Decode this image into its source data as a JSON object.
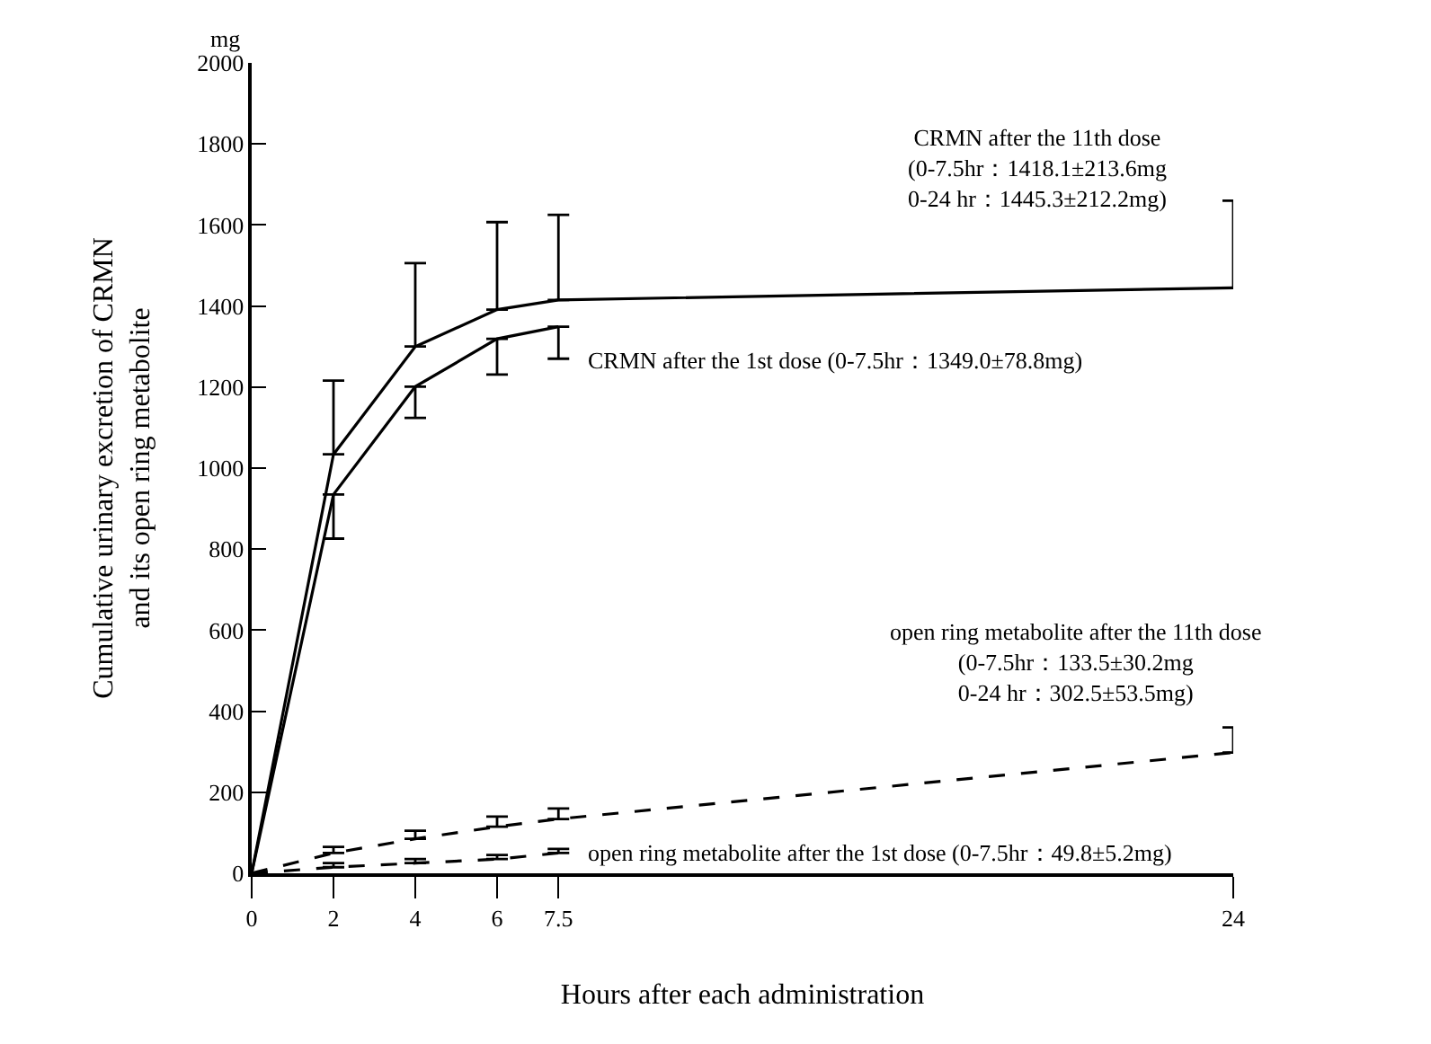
{
  "chart_data": {
    "type": "line",
    "xlabel": "Hours after each administration",
    "ylabel": "Cumulative urinary excretion of CRMN\nand its open ring metabolite",
    "x": [
      0,
      2,
      4,
      6,
      7.5,
      24
    ],
    "series": [
      {
        "color": "#000000",
        "line_style": "solid",
        "values": [
          0,
          1034,
          1300,
          1391,
          1415,
          1445
        ],
        "errors": [
          null,
          [
            1034,
            1216
          ],
          [
            1300,
            1506
          ],
          [
            1391,
            1607
          ],
          [
            1415,
            1625
          ],
          [
            1445,
            1660
          ]
        ]
      },
      {
        "color": "#000000",
        "line_style": "solid",
        "values": [
          0,
          935,
          1201,
          1319,
          1349,
          null
        ],
        "errors": [
          null,
          [
            826,
            935
          ],
          [
            1124,
            1201
          ],
          [
            1231,
            1319
          ],
          [
            1270,
            1349
          ],
          null
        ]
      },
      {
        "color": "#000000",
        "line_style": "dashed",
        "values": [
          0,
          50,
          85,
          115,
          134,
          298
        ],
        "errors": [
          null,
          [
            50,
            65
          ],
          [
            85,
            105
          ],
          [
            115,
            140
          ],
          [
            134,
            160
          ],
          [
            298,
            360
          ]
        ]
      },
      {
        "color": "#000000",
        "line_style": "dashed",
        "values": [
          0,
          15,
          25,
          35,
          50,
          null
        ],
        "errors": [
          null,
          [
            15,
            25
          ],
          [
            25,
            35
          ],
          [
            35,
            45
          ],
          [
            50,
            60
          ],
          null
        ]
      }
    ],
    "xlim": [
      0,
      24
    ],
    "xticks": [
      0,
      2,
      4,
      6,
      7.5,
      24
    ],
    "ylim": [
      0,
      2000
    ],
    "yticks": [
      0,
      200,
      400,
      600,
      800,
      1000,
      1200,
      1400,
      1600,
      1800,
      2000
    ],
    "grid": false,
    "marker": "none",
    "annotations": [
      "mg",
      "CRMN after the 11th dose\n(0-7.5hr：1418.1±213.6mg\n0-24 hr：1445.3±212.2mg)",
      "CRMN after the 1st dose (0-7.5hr：1349.0±78.8mg)",
      "open ring metabolite after the 11th dose\n(0-7.5hr：133.5±30.2mg\n0-24 hr：302.5±53.5mg)",
      "open ring metabolite after the 1st dose (0-7.5hr：49.8±5.2mg)"
    ]
  }
}
